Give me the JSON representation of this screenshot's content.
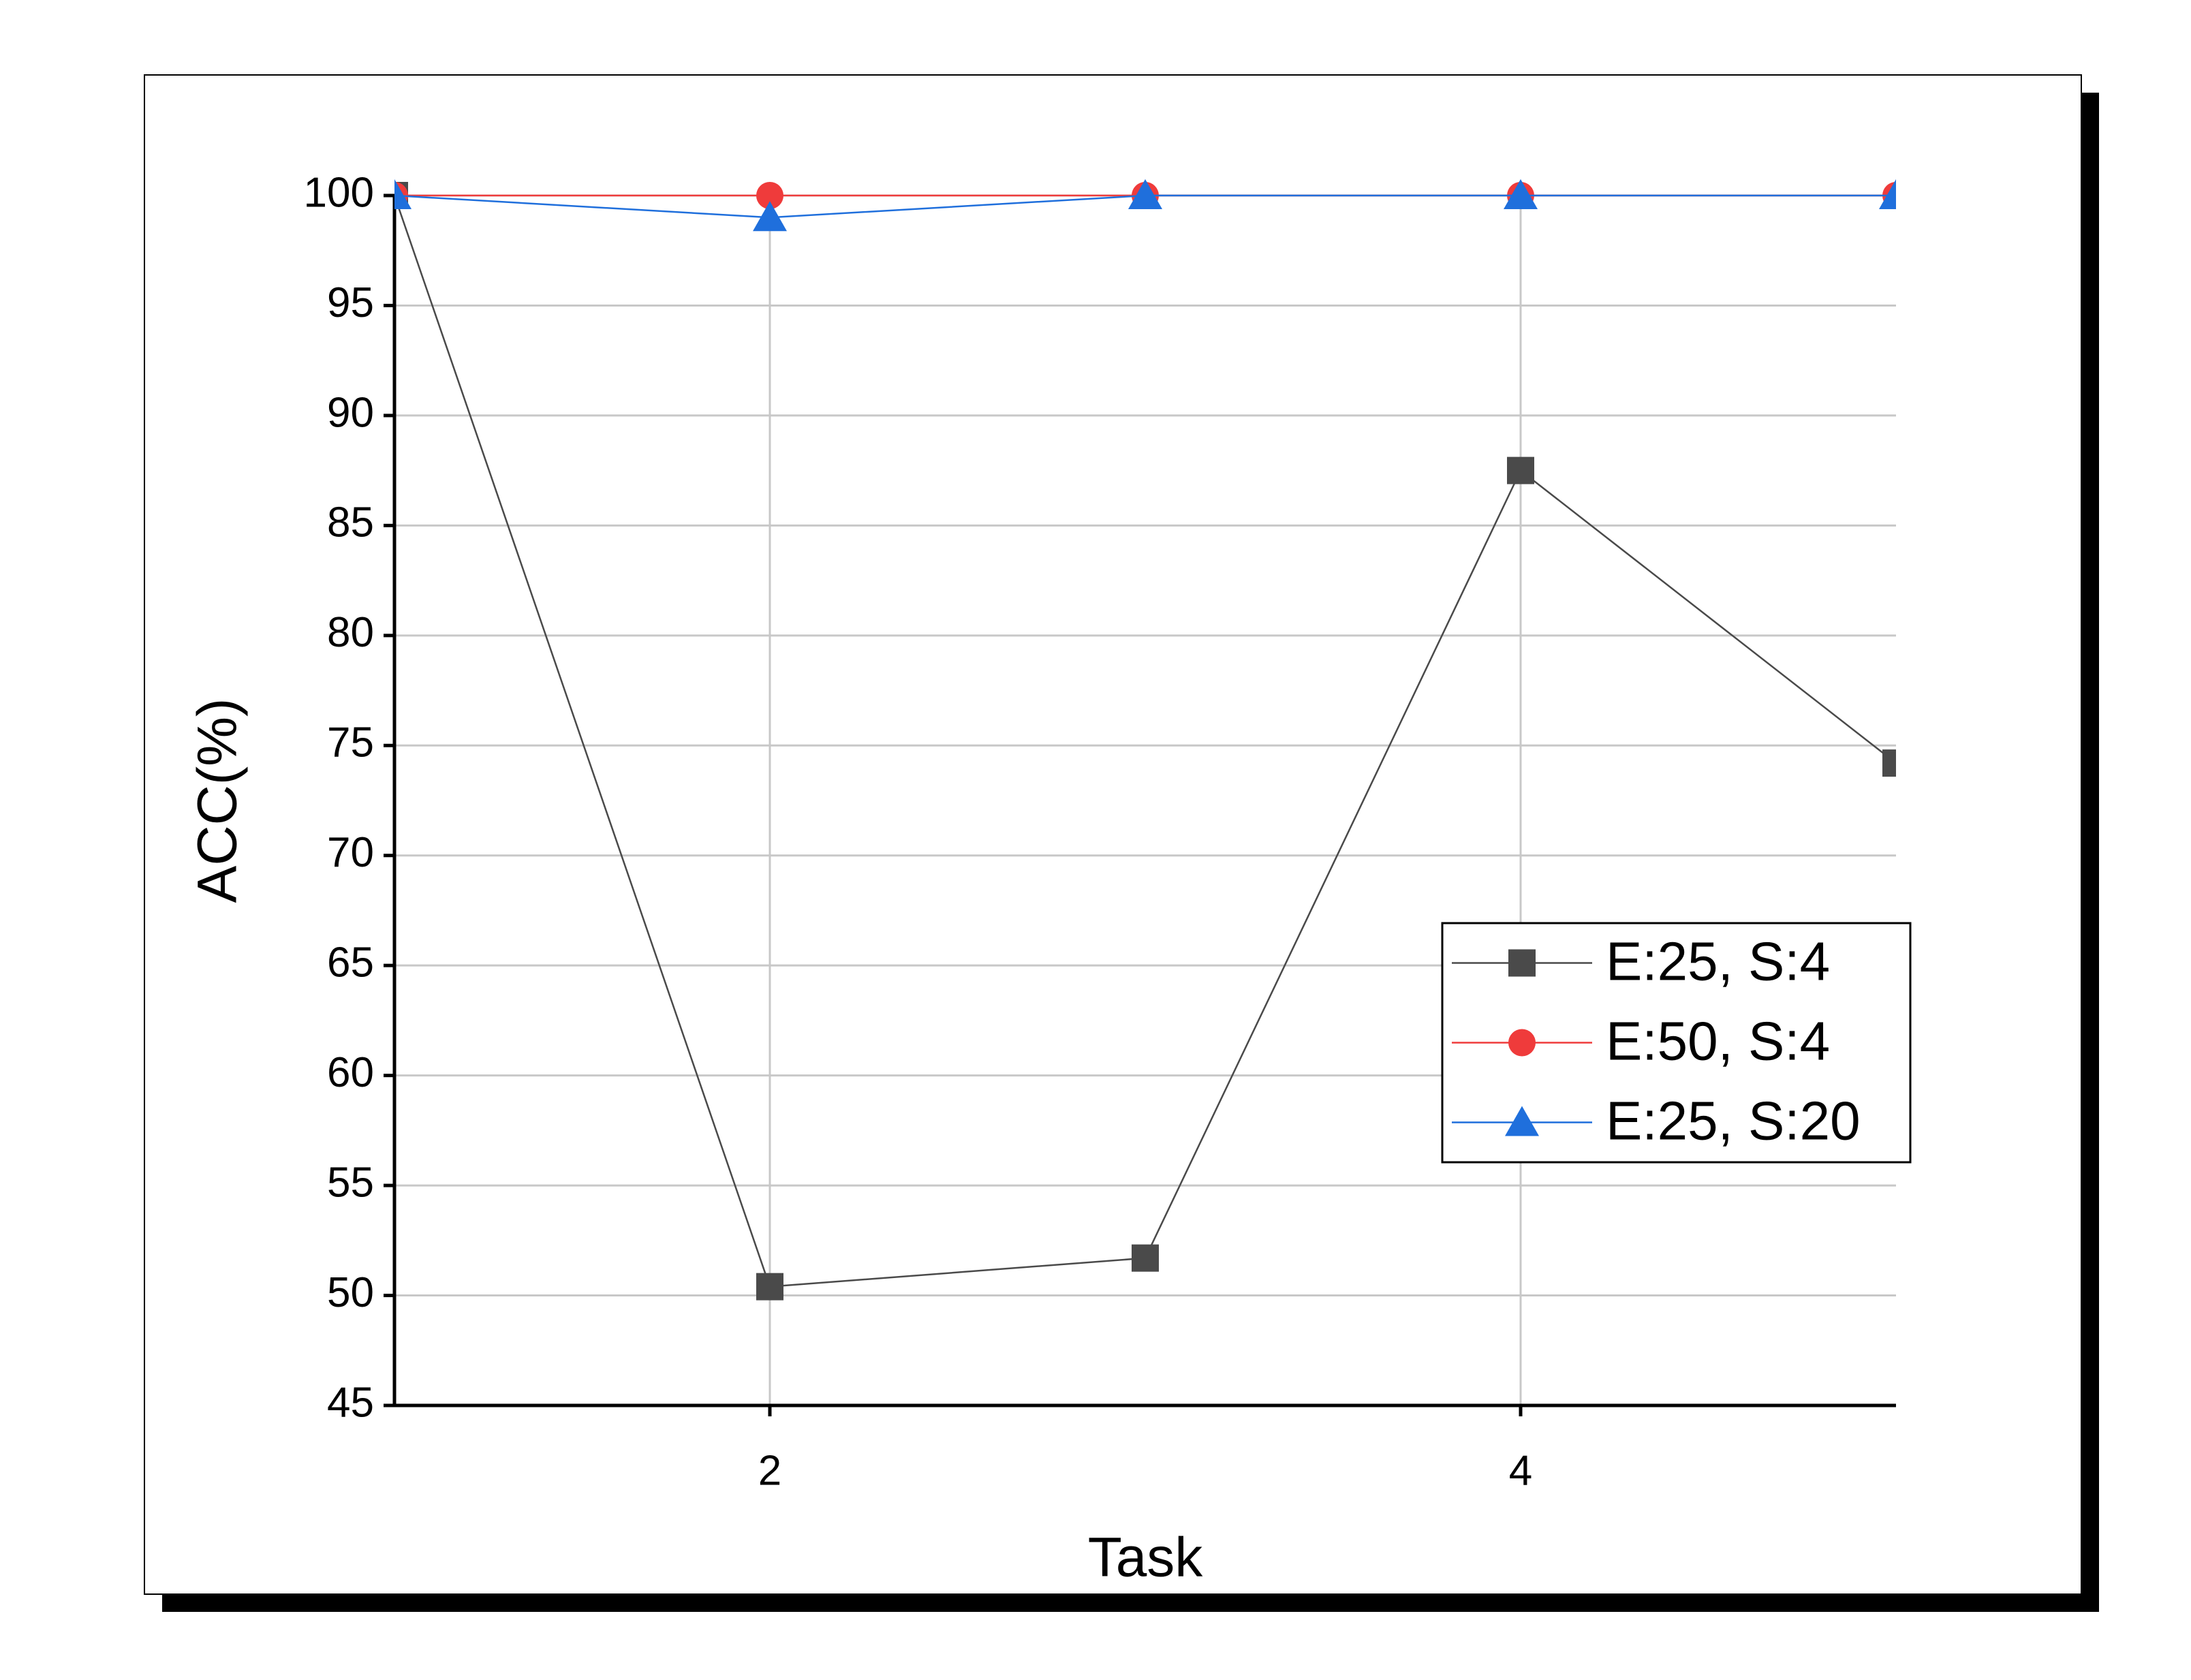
{
  "chart_data": {
    "type": "line",
    "x": [
      1,
      2,
      3,
      4,
      5
    ],
    "xlabel": "Task",
    "ylabel": "ACC(%)",
    "xlim": [
      1,
      5
    ],
    "xticks": [
      2,
      4
    ],
    "ylim": [
      45,
      100
    ],
    "yticks": [
      45,
      50,
      55,
      60,
      65,
      70,
      75,
      80,
      85,
      90,
      95,
      100
    ],
    "grid": true,
    "legend": "lower right",
    "series": [
      {
        "name": "E:25, S:4",
        "color": "#4a4a4a",
        "marker": "square",
        "values": [
          100,
          50.4,
          51.7,
          87.5,
          74.2
        ]
      },
      {
        "name": "E:50, S:4",
        "color": "#ef3b3b",
        "marker": "circle",
        "values": [
          100,
          100,
          100,
          100,
          100
        ]
      },
      {
        "name": "E:25, S:20",
        "color": "#1f6fdc",
        "marker": "triangle",
        "values": [
          100,
          99,
          100,
          100,
          100
        ]
      }
    ]
  }
}
